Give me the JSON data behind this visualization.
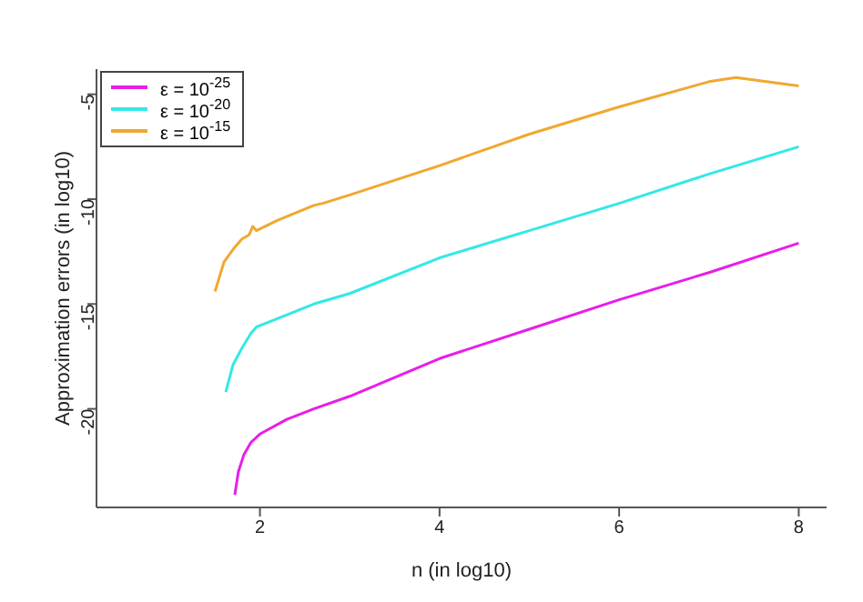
{
  "chart_data": {
    "type": "line",
    "xlabel": "n (in log10)",
    "ylabel": "Approximation errors (in log10)",
    "xlim": [
      0.18,
      8.31
    ],
    "xticks": [
      2,
      4,
      6,
      8
    ],
    "ylim": [
      -24.7,
      -3.8
    ],
    "yticks": [
      -20,
      -15,
      -10,
      -5
    ],
    "grid": false,
    "legend": "top left",
    "marker": "none",
    "line_style": "solid",
    "series": [
      {
        "name": "ε = 10$^{-25}$",
        "color": "#e81ee8",
        "x": [
          1.72,
          1.76,
          1.82,
          1.9,
          2,
          2.3,
          2.6,
          3,
          4,
          5,
          6,
          7,
          8
        ],
        "values": [
          -24.1,
          -23,
          -22.2,
          -21.6,
          -21.2,
          -20.5,
          -20,
          -19.4,
          -17.6,
          -16.2,
          -14.8,
          -13.5,
          -12.1
        ]
      },
      {
        "name": "ε = 10$^{-20}$",
        "color": "#33e8e8",
        "x": [
          1.62,
          1.7,
          1.8,
          1.9,
          1.96,
          2.6,
          3,
          4,
          5,
          6,
          7,
          8
        ],
        "values": [
          -19.2,
          -17.9,
          -17.1,
          -16.4,
          -16.1,
          -15,
          -14.5,
          -12.8,
          -11.5,
          -10.2,
          -8.8,
          -7.5
        ]
      },
      {
        "name": "ε = 10$^{-15}$",
        "color": "#f0a830",
        "x": [
          1.5,
          1.6,
          1.7,
          1.8,
          1.88,
          1.92,
          1.96,
          2.2,
          2.6,
          2.7,
          3,
          4,
          5,
          6,
          7,
          7.3,
          8
        ],
        "values": [
          -14.4,
          -13,
          -12.4,
          -11.9,
          -11.7,
          -11.3,
          -11.5,
          -11,
          -10.3,
          -10.2,
          -9.8,
          -8.4,
          -6.9,
          -5.6,
          -4.4,
          -4.2,
          -4.6
        ]
      }
    ]
  }
}
